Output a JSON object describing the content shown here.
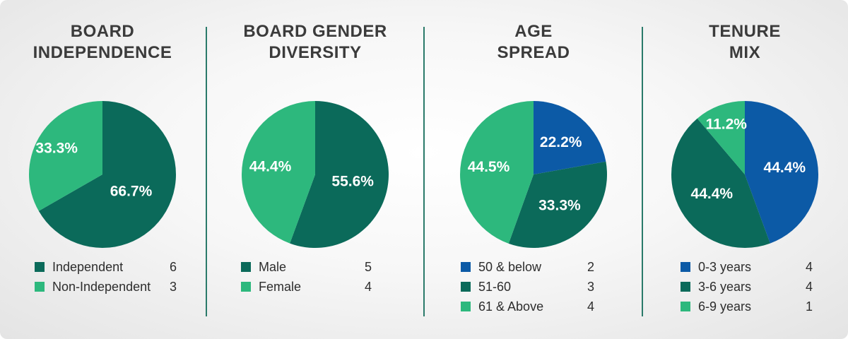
{
  "colors": {
    "dark_green": "#0b6a5a",
    "light_green": "#2db87d",
    "blue": "#0c5aa6",
    "divider": "#2a7a6a",
    "title": "#3b3b3b"
  },
  "chart_data": [
    {
      "type": "pie",
      "title_lines": [
        "BOARD",
        "INDEPENDENCE"
      ],
      "slices": [
        {
          "label": "Independent",
          "count": "6",
          "percent_label": "66.7%",
          "value": 66.7,
          "color": "#0b6a5a"
        },
        {
          "label": "Non-Independent",
          "count": "3",
          "percent_label": "33.3%",
          "value": 33.3,
          "color": "#2db87d"
        }
      ]
    },
    {
      "type": "pie",
      "title_lines": [
        "BOARD GENDER",
        "DIVERSITY"
      ],
      "slices": [
        {
          "label": "Male",
          "count": "5",
          "percent_label": "55.6%",
          "value": 55.6,
          "color": "#0b6a5a"
        },
        {
          "label": "Female",
          "count": "4",
          "percent_label": "44.4%",
          "value": 44.4,
          "color": "#2db87d"
        }
      ]
    },
    {
      "type": "pie",
      "title_lines": [
        "AGE",
        "SPREAD"
      ],
      "slices": [
        {
          "label": "50 & below",
          "count": "2",
          "percent_label": "22.2%",
          "value": 22.2,
          "color": "#0c5aa6"
        },
        {
          "label": "51-60",
          "count": "3",
          "percent_label": "33.3%",
          "value": 33.3,
          "color": "#0b6a5a"
        },
        {
          "label": "61 & Above",
          "count": "4",
          "percent_label": "44.5%",
          "value": 44.5,
          "color": "#2db87d"
        }
      ]
    },
    {
      "type": "pie",
      "title_lines": [
        "TENURE",
        "MIX"
      ],
      "slices": [
        {
          "label": "0-3 years",
          "count": "4",
          "percent_label": "44.4%",
          "value": 44.4,
          "color": "#0c5aa6"
        },
        {
          "label": "3-6 years",
          "count": "4",
          "percent_label": "44.4%",
          "value": 44.4,
          "color": "#0b6a5a"
        },
        {
          "label": "6-9 years",
          "count": "1",
          "percent_label": "11.2%",
          "value": 11.2,
          "color": "#2db87d"
        }
      ]
    }
  ]
}
